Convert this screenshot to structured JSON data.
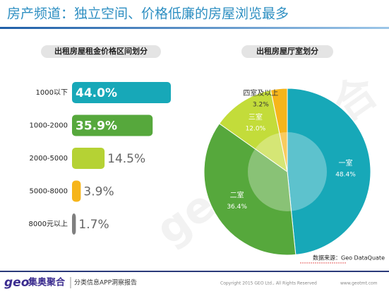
{
  "title": "房产频道：独立空间、价格低廉的房屋浏览最多",
  "chart_data": [
    {
      "type": "bar",
      "orientation": "horizontal",
      "title": "出租房屋租金价格区间划分",
      "categories": [
        "1000以下",
        "1000-2000",
        "2000-5000",
        "5000-8000",
        "8000元以上"
      ],
      "values": [
        44.0,
        35.9,
        14.5,
        3.9,
        1.7
      ],
      "value_labels": [
        "44.0%",
        "35.9%",
        "14.5%",
        "3.9%",
        "1.7%"
      ],
      "colors": [
        "#17a8b8",
        "#56a83c",
        "#b5d234",
        "#f6b51b",
        "#7f7f7f"
      ]
    },
    {
      "type": "pie",
      "title": "出租房屋厅室划分",
      "categories": [
        "一室",
        "二室",
        "三室",
        "四室及以上"
      ],
      "values": [
        48.4,
        36.4,
        12.0,
        3.2
      ],
      "value_labels": [
        "48.4%",
        "36.4%",
        "12.0%",
        "3.2%"
      ],
      "colors": [
        "#17a8b8",
        "#56a83c",
        "#c3dc3a",
        "#f6b51b"
      ]
    }
  ],
  "watermark": "geo集奥聚合",
  "source": "数据来源：Geo DataQuate",
  "footer": {
    "logo_en": "geo",
    "logo_cn": "集奥聚合",
    "report": "分类信息APP洞察报告",
    "copyright": "Copyright 2015 GEO Ltd., All Rights Reserved",
    "website": "www.geotmt.com"
  }
}
